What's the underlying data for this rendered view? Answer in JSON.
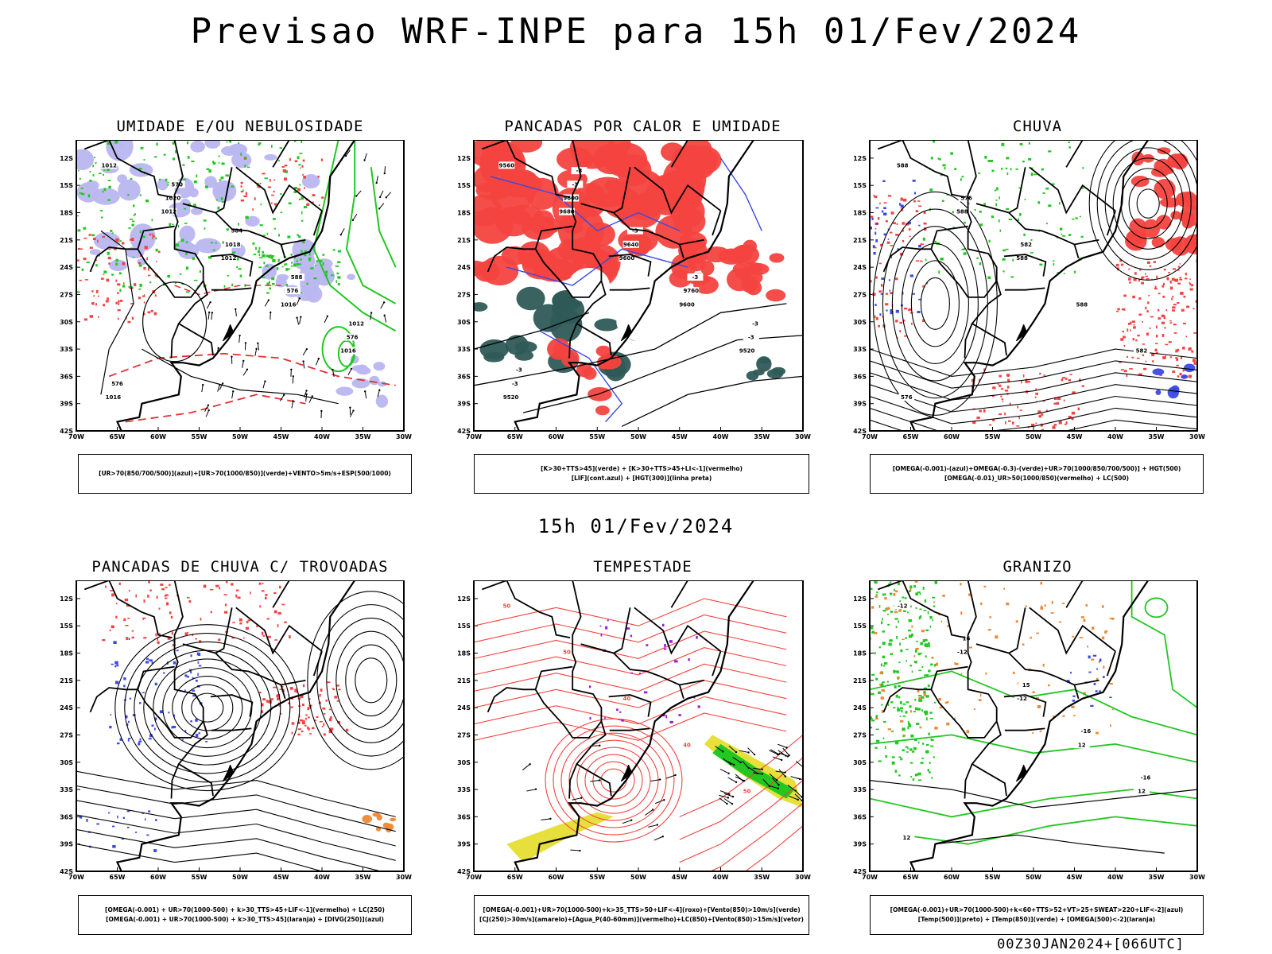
{
  "title": "Previsao WRF-INPE  para 15h 01/Fev/2024",
  "mid_time": "15h 01/Fev/2024",
  "footer": "00Z30JAN2024+[066UTC]",
  "axes": {
    "x_ticks": [
      "70W",
      "65W",
      "60W",
      "55W",
      "50W",
      "45W",
      "40W",
      "35W",
      "30W"
    ],
    "y_ticks": [
      "12S",
      "15S",
      "18S",
      "21S",
      "24S",
      "27S",
      "30S",
      "33S",
      "36S",
      "39S",
      "42S"
    ]
  },
  "colors": {
    "red": "#f4433f",
    "green": "#22c722",
    "blue": "#3a49e6",
    "lavender": "#b9b6f0",
    "teal": "#2e5a57",
    "yellow": "#e6df3c",
    "orange": "#ee8833",
    "purple": "#9a1ed8",
    "black": "#000000"
  },
  "panels": [
    {
      "title": "UMIDADE E/OU NEBULOSIDADE",
      "legend": [
        "[UR>70(850/700/500)](azul)+[UR>70(1000/850)](verde)+VENTO>5m/s+ESP(500/1000)"
      ],
      "labels": [
        "1012",
        "1012",
        "1012",
        "1016",
        "1016",
        "1016",
        "1020",
        "1018",
        "576",
        "576",
        "576",
        "570",
        "584",
        "588",
        "1012"
      ]
    },
    {
      "title": "PANCADAS POR CALOR E UMIDADE",
      "legend": [
        "[K>30+TTS>45](verde) + [K>30+TTS>45+LI<-1](vermelho)",
        "[LIF](cont.azul) + [HGT(300)](linha preta)"
      ],
      "labels": [
        "9560",
        "9680",
        "9600",
        "9600",
        "9520",
        "9520",
        "9600",
        "9640",
        "9760",
        "-3",
        "-3",
        "-3",
        "-3",
        "-3",
        "-3",
        "-3",
        "-3"
      ]
    },
    {
      "title": "CHUVA",
      "legend": [
        "[OMEGA(-0.001)-(azul)+OMEGA(-0.3)-(verde)+UR>70(1000/850/700/500)] + HGT(500)",
        "[OMEGA(-0.01)_UR>50(1000/850)(vermelho) + LC(500)"
      ],
      "labels": [
        "588",
        "588",
        "588",
        "588",
        "582",
        "576",
        "576",
        "582"
      ]
    },
    {
      "title": "PANCADAS DE CHUVA C/ TROVOADAS",
      "legend": [
        "[OMEGA(-0.001) + UR>70(1000-500) + k>30_TTS>45+LIF<-1](vermelho) + LC(250)",
        "[OMEGA(-0.001) + UR>70(1000-500) + k>30_TTS>45](laranja) + [DIVG(250)](azul)"
      ],
      "labels": []
    },
    {
      "title": "TEMPESTADE",
      "legend": [
        "[OMEGA(-0.001)+UR>70(1000-500)+k>35_TTS>50+LIF<-4](roxo)+[Vento(850)>10m/s](verde)",
        "[CJ(250)>30m/s](amarelo)+[Agua_P(40-60mm)](vermelho)+LC(850)+[Vento(850)>15m/s](vetor)"
      ],
      "labels": [
        "50",
        "50",
        "40",
        "40",
        "50"
      ]
    },
    {
      "title": "GRANIZO",
      "legend": [
        "[OMEGA(-0.001)+UR>70(1000-500)+k<60+TTS>52+VT>25+SWEAT>220+LIF<-2](azul)",
        "[Temp(500)](preto) + [Temp(850)](verde) + [OMEGA(500)<-2](laranja)"
      ],
      "labels": [
        "-12",
        "-12",
        "-12",
        "12",
        "12",
        "12",
        "16",
        "15",
        "-16",
        "-16"
      ]
    }
  ],
  "chart_data": [
    {
      "type": "map",
      "title": "UMIDADE E/OU NEBULOSIDADE",
      "xlim": [
        "70W",
        "30W"
      ],
      "ylim": [
        "42S",
        "10S"
      ]
    },
    {
      "type": "map",
      "title": "PANCADAS POR CALOR E UMIDADE",
      "xlim": [
        "70W",
        "30W"
      ],
      "ylim": [
        "42S",
        "10S"
      ]
    },
    {
      "type": "map",
      "title": "CHUVA",
      "xlim": [
        "70W",
        "30W"
      ],
      "ylim": [
        "42S",
        "10S"
      ]
    },
    {
      "type": "map",
      "title": "PANCADAS DE CHUVA C/ TROVOADAS",
      "xlim": [
        "70W",
        "30W"
      ],
      "ylim": [
        "42S",
        "10S"
      ]
    },
    {
      "type": "map",
      "title": "TEMPESTADE",
      "xlim": [
        "70W",
        "30W"
      ],
      "ylim": [
        "42S",
        "10S"
      ]
    },
    {
      "type": "map",
      "title": "GRANIZO",
      "xlim": [
        "70W",
        "30W"
      ],
      "ylim": [
        "42S",
        "10S"
      ]
    }
  ]
}
